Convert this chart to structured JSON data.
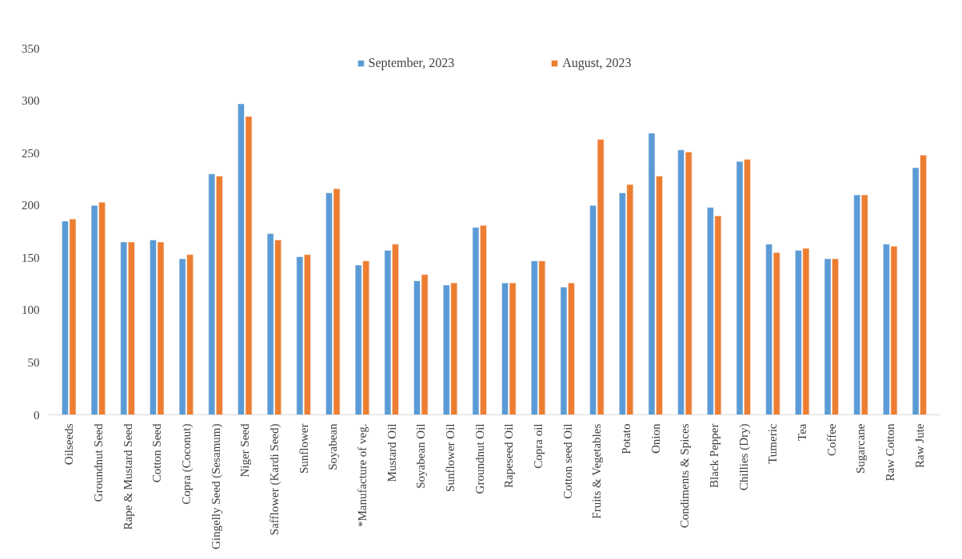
{
  "chart_data": {
    "type": "bar",
    "categories": [
      "Oilseeds",
      "Groundnut Seed",
      "Rape & Mustard Seed",
      "Cotton Seed",
      "Copra (Coconut)",
      "Gingelly Seed (Sesamum)",
      "Niger Seed",
      "Safflower (Kardi Seed)",
      "Sunflower",
      "Soyabean",
      "*Manufacture of veg.",
      "Mustard Oil",
      "Soyabean Oil",
      "Sunflower Oil",
      "Groundnut Oil",
      "Rapeseed Oil",
      "Copra oil",
      "Cotton seed Oil",
      "Fruits & Vegetables",
      "Potato",
      "Onion",
      "Condiments & Spices",
      "Black Pepper",
      "Chillies (Dry)",
      "Tumeric",
      "Tea",
      "Coffee",
      "Sugarcane",
      "Raw Cotton",
      "Raw Jute"
    ],
    "series": [
      {
        "name": "September, 2023",
        "color": "#5b9bd5",
        "values": [
          185,
          200,
          165,
          167,
          149,
          230,
          297,
          173,
          151,
          212,
          143,
          157,
          128,
          124,
          179,
          126,
          147,
          122,
          200,
          212,
          269,
          253,
          198,
          242,
          163,
          157,
          149,
          210,
          163,
          236
        ]
      },
      {
        "name": "August, 2023",
        "color": "#ed7d31",
        "values": [
          187,
          203,
          165,
          165,
          153,
          228,
          285,
          167,
          153,
          216,
          147,
          163,
          134,
          126,
          181,
          126,
          147,
          126,
          263,
          220,
          228,
          251,
          190,
          244,
          155,
          159,
          149,
          210,
          161,
          248
        ]
      }
    ],
    "ylim": [
      0,
      350
    ],
    "yticks": [
      0,
      50,
      100,
      150,
      200,
      250,
      300,
      350
    ],
    "grid": false,
    "legend": "top"
  }
}
